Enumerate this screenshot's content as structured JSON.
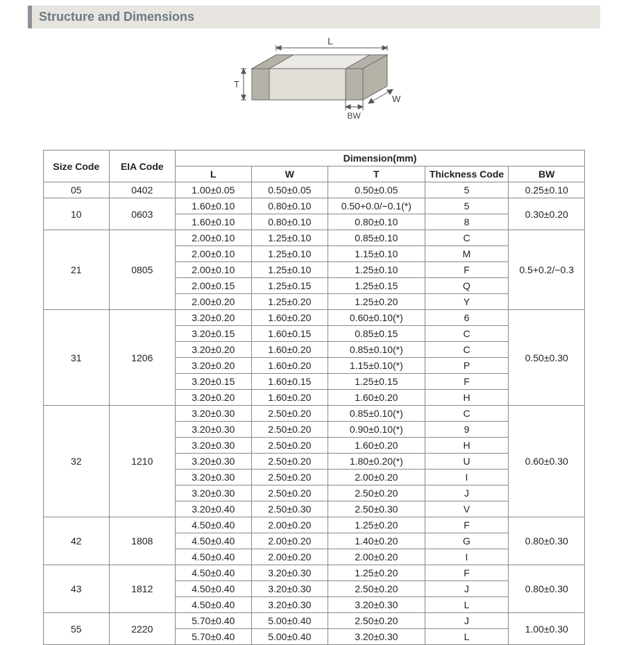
{
  "section_title": "Structure and Dimensions",
  "diagram": {
    "labels": {
      "L": "L",
      "W": "W",
      "T": "T",
      "BW": "BW"
    },
    "stroke": "#6a6a6a",
    "fill_top": "#eceae6",
    "fill_side": "#d8d4cd",
    "fill_front": "#e2dfd9",
    "fill_band": "#b6b2a8"
  },
  "table": {
    "caption": "Dimension(mm)",
    "headers": {
      "size": "Size Code",
      "eia": "EIA Code",
      "L": "L",
      "W": "W",
      "T": "T",
      "thickness": "Thickness  Code",
      "BW": "BW"
    },
    "groups": [
      {
        "size": "05",
        "eia": "0402",
        "bw": "0.25±0.10",
        "rows": [
          {
            "L": "1.00±0.05",
            "W": "0.50±0.05",
            "T": "0.50±0.05",
            "tc": "5"
          }
        ]
      },
      {
        "size": "10",
        "eia": "0603",
        "bw": "0.30±0.20",
        "rows": [
          {
            "L": "1.60±0.10",
            "W": "0.80±0.10",
            "T": "0.50+0.0/−0.1(*)",
            "tc": "5"
          },
          {
            "L": "1.60±0.10",
            "W": "0.80±0.10",
            "T": "0.80±0.10",
            "tc": "8"
          }
        ]
      },
      {
        "size": "21",
        "eia": "0805",
        "bw": "0.5+0.2/−0.3",
        "rows": [
          {
            "L": "2.00±0.10",
            "W": "1.25±0.10",
            "T": "0.85±0.10",
            "tc": "C"
          },
          {
            "L": "2.00±0.10",
            "W": "1.25±0.10",
            "T": "1.15±0.10",
            "tc": "M"
          },
          {
            "L": "2.00±0.10",
            "W": "1.25±0.10",
            "T": "1.25±0.10",
            "tc": "F"
          },
          {
            "L": "2.00±0.15",
            "W": "1.25±0.15",
            "T": "1.25±0.15",
            "tc": "Q"
          },
          {
            "L": "2.00±0.20",
            "W": "1.25±0.20",
            "T": "1.25±0.20",
            "tc": "Y"
          }
        ]
      },
      {
        "size": "31",
        "eia": "1206",
        "bw": "0.50±0.30",
        "rows": [
          {
            "L": "3.20±0.20",
            "W": "1.60±0.20",
            "T": "0.60±0.10(*)",
            "tc": "6"
          },
          {
            "L": "3.20±0.15",
            "W": "1.60±0.15",
            "T": "0.85±0.15",
            "tc": "C"
          },
          {
            "L": "3.20±0.20",
            "W": "1.60±0.20",
            "T": "0.85±0.10(*)",
            "tc": "C"
          },
          {
            "L": "3.20±0.20",
            "W": "1.60±0.20",
            "T": "1.15±0.10(*)",
            "tc": "P"
          },
          {
            "L": "3.20±0.15",
            "W": "1.60±0.15",
            "T": "1.25±0.15",
            "tc": "F"
          },
          {
            "L": "3.20±0.20",
            "W": "1.60±0.20",
            "T": "1.60±0.20",
            "tc": "H"
          }
        ]
      },
      {
        "size": "32",
        "eia": "1210",
        "bw": "0.60±0.30",
        "rows": [
          {
            "L": "3.20±0.30",
            "W": "2.50±0.20",
            "T": "0.85±0.10(*)",
            "tc": "C"
          },
          {
            "L": "3.20±0.30",
            "W": "2.50±0.20",
            "T": "0.90±0.10(*)",
            "tc": "9"
          },
          {
            "L": "3.20±0.30",
            "W": "2.50±0.20",
            "T": "1.60±0.20",
            "tc": "H"
          },
          {
            "L": "3.20±0.30",
            "W": "2.50±0.20",
            "T": "1.80±0.20(*)",
            "tc": "U"
          },
          {
            "L": "3.20±0.30",
            "W": "2.50±0.20",
            "T": "2.00±0.20",
            "tc": "I"
          },
          {
            "L": "3.20±0.30",
            "W": "2.50±0.20",
            "T": "2.50±0.20",
            "tc": "J"
          },
          {
            "L": "3.20±0.40",
            "W": "2.50±0.30",
            "T": "2.50±0.30",
            "tc": "V"
          }
        ]
      },
      {
        "size": "42",
        "eia": "1808",
        "bw": "0.80±0.30",
        "rows": [
          {
            "L": "4.50±0.40",
            "W": "2.00±0.20",
            "T": "1.25±0.20",
            "tc": "F"
          },
          {
            "L": "4.50±0.40",
            "W": "2.00±0.20",
            "T": "1.40±0.20",
            "tc": "G"
          },
          {
            "L": "4.50±0.40",
            "W": "2.00±0.20",
            "T": "2.00±0.20",
            "tc": "I"
          }
        ]
      },
      {
        "size": "43",
        "eia": "1812",
        "bw": "0.80±0.30",
        "rows": [
          {
            "L": "4.50±0.40",
            "W": "3.20±0.30",
            "T": "1.25±0.20",
            "tc": "F"
          },
          {
            "L": "4.50±0.40",
            "W": "3.20±0.30",
            "T": "2.50±0.20",
            "tc": "J"
          },
          {
            "L": "4.50±0.40",
            "W": "3.20±0.30",
            "T": "3.20±0.30",
            "tc": "L"
          }
        ]
      },
      {
        "size": "55",
        "eia": "2220",
        "bw": "1.00±0.30",
        "rows": [
          {
            "L": "5.70±0.40",
            "W": "5.00±0.40",
            "T": "2.50±0.20",
            "tc": "J"
          },
          {
            "L": "5.70±0.40",
            "W": "5.00±0.40",
            "T": "3.20±0.30",
            "tc": "L"
          }
        ]
      }
    ]
  }
}
